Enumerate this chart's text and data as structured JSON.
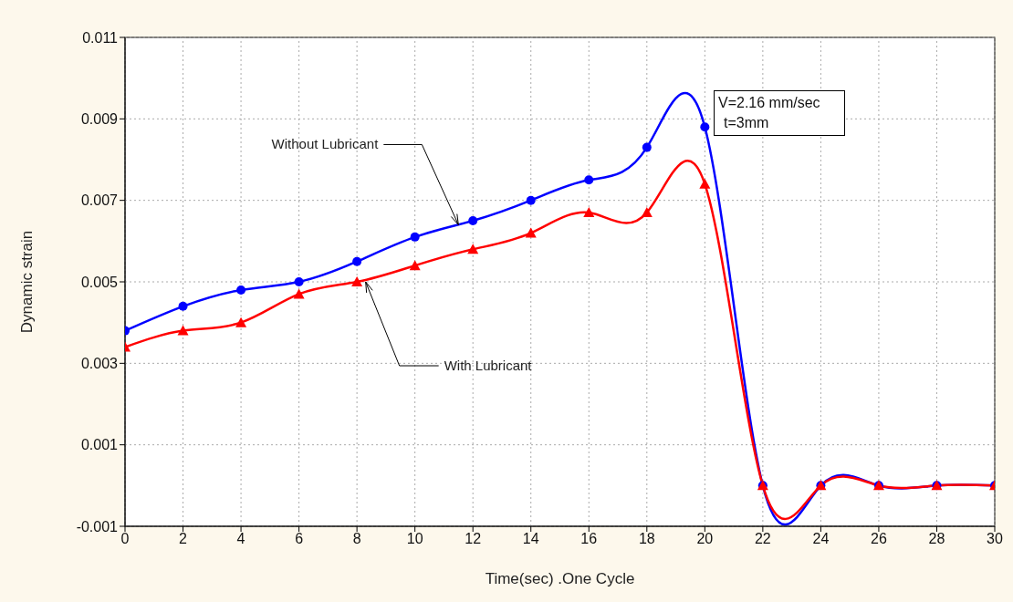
{
  "chart_data": {
    "type": "line",
    "xlabel": "Time(sec) .One Cycle",
    "ylabel": "Dynamic strain",
    "x": [
      0,
      2,
      4,
      6,
      8,
      10,
      12,
      14,
      16,
      18,
      20,
      22,
      24,
      26,
      28,
      30
    ],
    "series": [
      {
        "color": "#0000ff",
        "marker": "circle",
        "values": [
          0.0038,
          0.0044,
          0.0048,
          0.005,
          0.0055,
          0.0061,
          0.0065,
          0.007,
          0.0075,
          0.0083,
          0.0088,
          0,
          0,
          0,
          0,
          0
        ]
      },
      {
        "color": "#ff0000",
        "marker": "triangle",
        "values": [
          0.0034,
          0.0038,
          0.004,
          0.0047,
          0.005,
          0.0054,
          0.0058,
          0.0062,
          0.0067,
          0.0067,
          0.0074,
          0,
          0,
          0,
          0,
          0
        ]
      }
    ],
    "xlim": [
      0,
      30
    ],
    "xticks": [
      0,
      2,
      4,
      6,
      8,
      10,
      12,
      14,
      16,
      18,
      20,
      22,
      24,
      26,
      28,
      30
    ],
    "ylim": [
      -0.001,
      0.011
    ],
    "yticks": [
      -0.001,
      0.001,
      0.003,
      0.005,
      0.007,
      0.009,
      0.011
    ],
    "grid": true,
    "line_style": "solid",
    "annotations": [
      {
        "text": "Without Lubricant",
        "x": 11.5,
        "y": 0.0064
      },
      {
        "text": "With Lubricant",
        "x": 8.3,
        "y": 0.005
      },
      "V=2.16 mm/sec",
      "t=3mm"
    ]
  }
}
